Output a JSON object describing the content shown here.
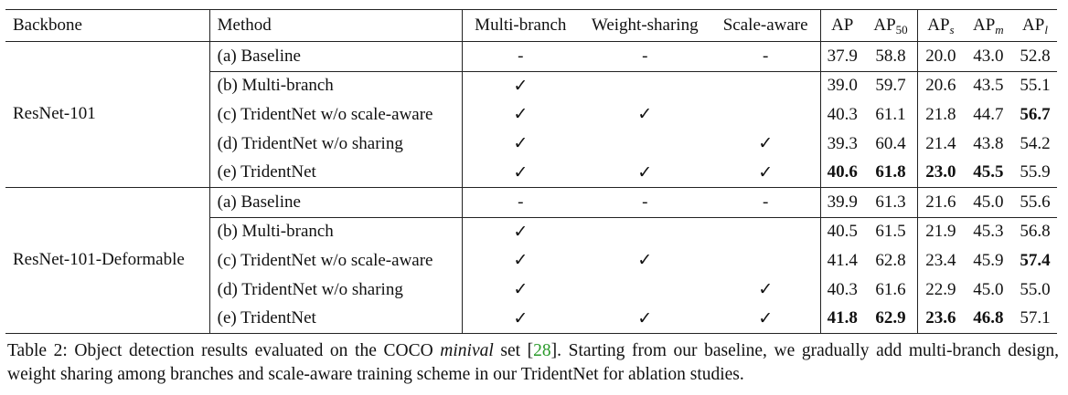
{
  "headers": {
    "backbone": "Backbone",
    "method": "Method",
    "multi_branch": "Multi-branch",
    "weight_sharing": "Weight-sharing",
    "scale_aware": "Scale-aware",
    "ap": "AP",
    "ap50_base": "AP",
    "ap50_sub": "50",
    "aps_base": "AP",
    "aps_sub": "s",
    "apm_base": "AP",
    "apm_sub": "m",
    "apl_base": "AP",
    "apl_sub": "l"
  },
  "groups": [
    {
      "backbone": "ResNet-101",
      "rows": [
        {
          "method": "(a) Baseline",
          "mb": "-",
          "ws": "-",
          "sa": "-",
          "ap": "37.9",
          "ap50": "58.8",
          "aps": "20.0",
          "apm": "43.0",
          "apl": "52.8"
        },
        {
          "method": "(b) Multi-branch",
          "mb": "✓",
          "ws": "",
          "sa": "",
          "ap": "39.0",
          "ap50": "59.7",
          "aps": "20.6",
          "apm": "43.5",
          "apl": "55.1"
        },
        {
          "method": "(c) TridentNet w/o scale-aware",
          "mb": "✓",
          "ws": "✓",
          "sa": "",
          "ap": "40.3",
          "ap50": "61.1",
          "aps": "21.8",
          "apm": "44.7",
          "apl": "56.7"
        },
        {
          "method": "(d) TridentNet w/o sharing",
          "mb": "✓",
          "ws": "",
          "sa": "✓",
          "ap": "39.3",
          "ap50": "60.4",
          "aps": "21.4",
          "apm": "43.8",
          "apl": "54.2"
        },
        {
          "method": "(e) TridentNet",
          "mb": "✓",
          "ws": "✓",
          "sa": "✓",
          "ap": "40.6",
          "ap50": "61.8",
          "aps": "23.0",
          "apm": "45.5",
          "apl": "55.9"
        }
      ]
    },
    {
      "backbone": "ResNet-101-Deformable",
      "rows": [
        {
          "method": "(a) Baseline",
          "mb": "-",
          "ws": "-",
          "sa": "-",
          "ap": "39.9",
          "ap50": "61.3",
          "aps": "21.6",
          "apm": "45.0",
          "apl": "55.6"
        },
        {
          "method": "(b) Multi-branch",
          "mb": "✓",
          "ws": "",
          "sa": "",
          "ap": "40.5",
          "ap50": "61.5",
          "aps": "21.9",
          "apm": "45.3",
          "apl": "56.8"
        },
        {
          "method": "(c) TridentNet w/o scale-aware",
          "mb": "✓",
          "ws": "✓",
          "sa": "",
          "ap": "41.4",
          "ap50": "62.8",
          "aps": "23.4",
          "apm": "45.9",
          "apl": "57.4"
        },
        {
          "method": "(d) TridentNet w/o sharing",
          "mb": "✓",
          "ws": "",
          "sa": "✓",
          "ap": "40.3",
          "ap50": "61.6",
          "aps": "22.9",
          "apm": "45.0",
          "apl": "55.0"
        },
        {
          "method": "(e) TridentNet",
          "mb": "✓",
          "ws": "✓",
          "sa": "✓",
          "ap": "41.8",
          "ap50": "62.9",
          "aps": "23.6",
          "apm": "46.8",
          "apl": "57.1"
        }
      ]
    }
  ],
  "bold_cells": [
    [
      0,
      2,
      "apl"
    ],
    [
      0,
      4,
      "ap"
    ],
    [
      0,
      4,
      "ap50"
    ],
    [
      0,
      4,
      "aps"
    ],
    [
      0,
      4,
      "apm"
    ],
    [
      1,
      2,
      "apl"
    ],
    [
      1,
      4,
      "ap"
    ],
    [
      1,
      4,
      "ap50"
    ],
    [
      1,
      4,
      "aps"
    ],
    [
      1,
      4,
      "apm"
    ]
  ],
  "caption": {
    "label": "Table 2: Object detection results evaluated on the COCO ",
    "emph": "minival",
    "mid": " set [",
    "ref": "28",
    "rest": "]. Starting from our baseline, we gradually add multi-branch design, weight sharing among branches and scale-aware training scheme in our TridentNet for ablation studies."
  }
}
